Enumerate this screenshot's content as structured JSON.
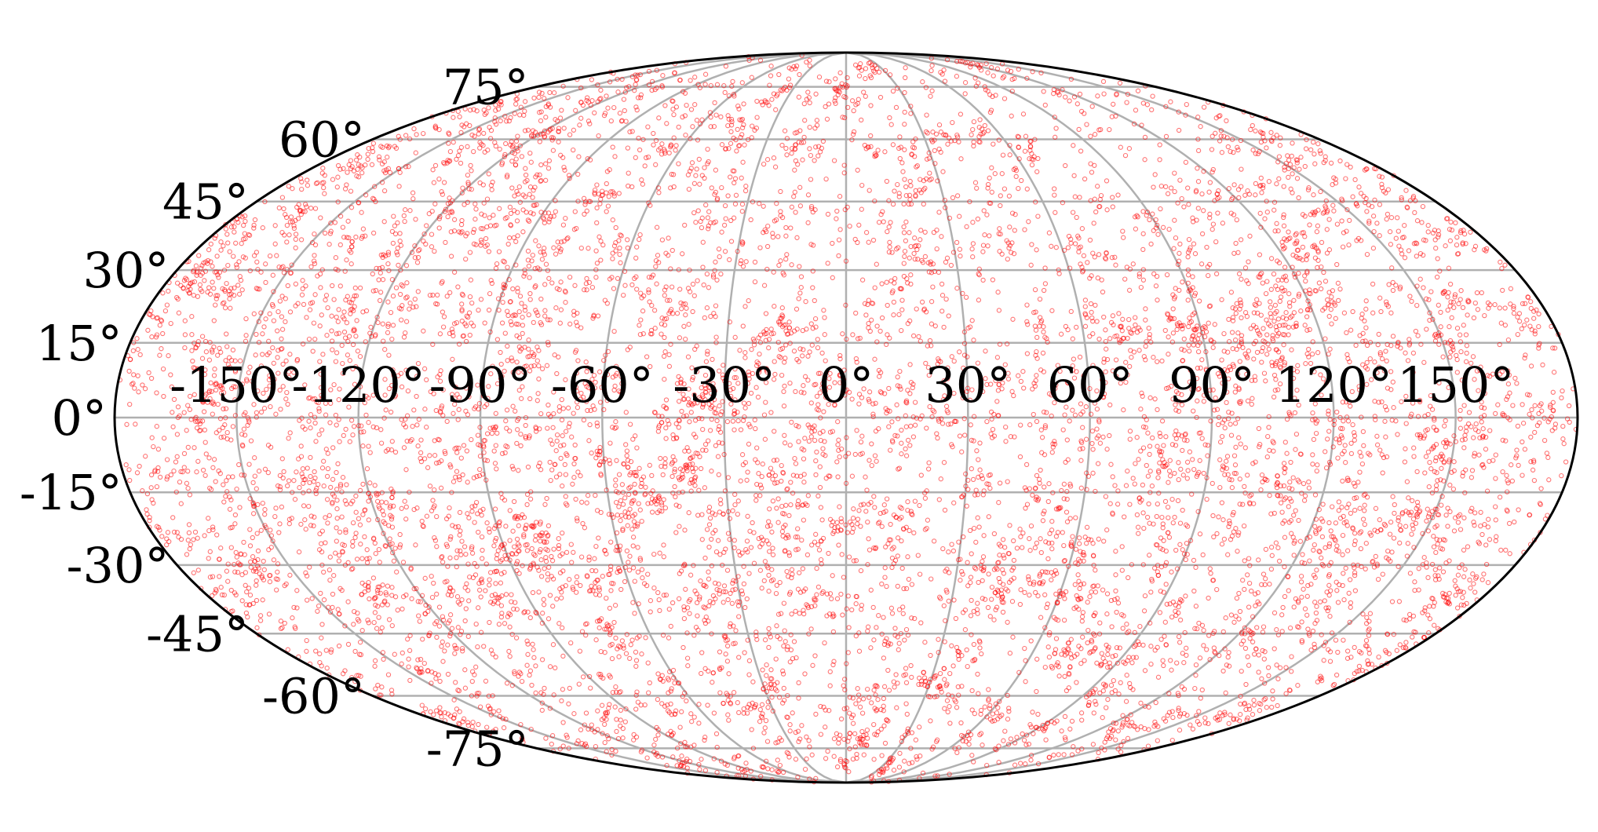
{
  "chart_data": {
    "type": "scatter",
    "projection": "mollweide",
    "title": "",
    "xlabel": "",
    "ylabel": "",
    "grid": true,
    "legend": "none",
    "xlim": [
      -180,
      180
    ],
    "ylim": [
      -90,
      90
    ],
    "longitude_ticks": [
      -150,
      -120,
      -90,
      -60,
      -30,
      0,
      30,
      60,
      90,
      120,
      150
    ],
    "latitude_ticks": [
      -75,
      -60,
      -45,
      -30,
      -15,
      0,
      15,
      30,
      45,
      60,
      75
    ],
    "longitude_tick_labels": [
      "-150°",
      "-120°",
      "-90°",
      "-60°",
      "-30°",
      "0°",
      "30°",
      "60°",
      "90°",
      "120°",
      "150°"
    ],
    "latitude_tick_labels": [
      "-75°",
      "-60°",
      "-45°",
      "-30°",
      "-15°",
      "0°",
      "15°",
      "30°",
      "45°",
      "60°",
      "75°"
    ],
    "series": [
      {
        "marker": "open-circle",
        "distribution": "approximately uniform over the sphere with small filamentary clusters",
        "approx_point_count": 9000
      }
    ],
    "colors": {
      "points": "#ff0000",
      "grid": "#b0b0b0",
      "frame": "#000000"
    }
  }
}
